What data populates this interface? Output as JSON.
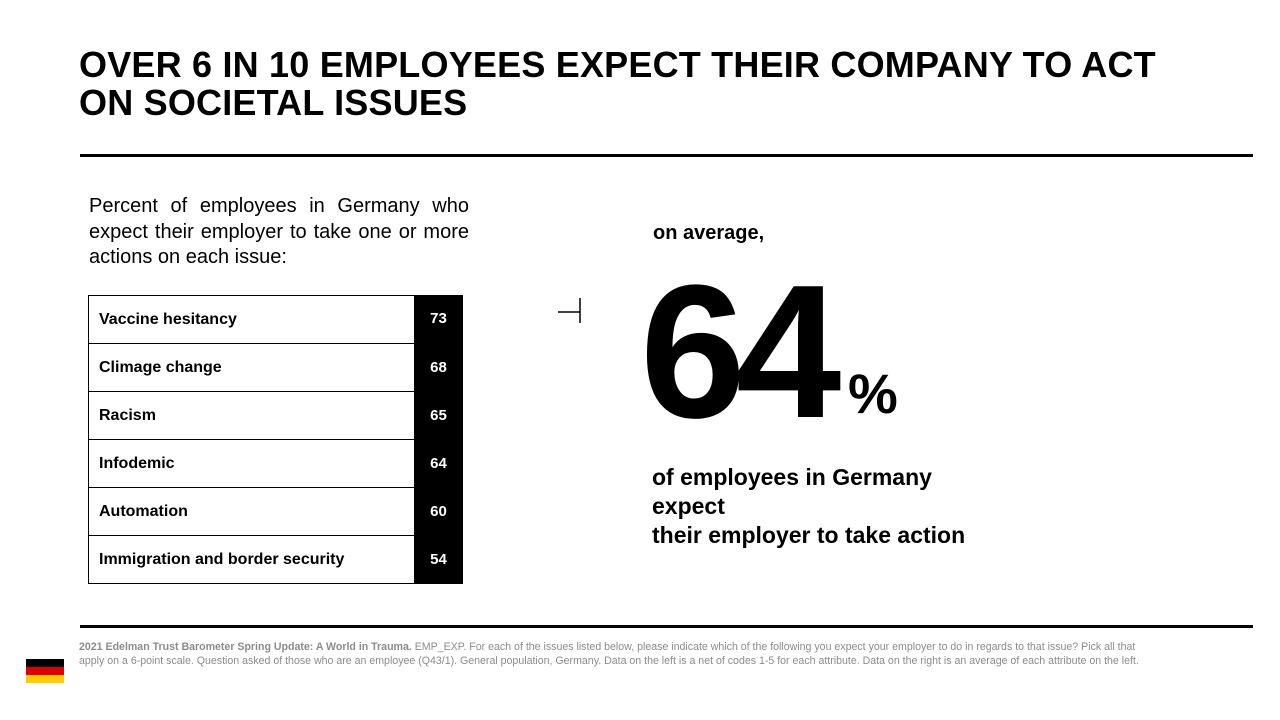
{
  "title": "OVER 6 IN 10 EMPLOYEES EXPECT THEIR COMPANY TO ACT ON SOCIETAL ISSUES",
  "intro_text": "Percent of employees in Germany who expect their employer to take one or more actions on each issue:",
  "chart_data": {
    "type": "table",
    "categories": [
      "Vaccine hesitancy",
      "Climage change",
      "Racism",
      "Infodemic",
      "Automation",
      "Immigration and border security"
    ],
    "values": [
      73,
      68,
      65,
      64,
      60,
      54
    ],
    "unit": "percent"
  },
  "average": {
    "label": "on average,",
    "value": "64",
    "unit": "%",
    "description": "of employees in Germany\nexpect\ntheir employer to take action"
  },
  "footnote": {
    "source": "2021 Edelman Trust Barometer Spring Update: A World in Trauma.",
    "text": " EMP_EXP. For each of the issues listed below, please indicate which of the following you expect your employer to do in regards to that issue? Pick all that apply on a 6-point scale. Question asked of those who are an employee (Q43/1). General population, Germany. Data on the left is a net of codes 1-5 for each attribute. Data on the right is an average of each attribute on the left."
  },
  "flag": {
    "name": "germany-flag",
    "colors": [
      "#000000",
      "#dd0000",
      "#ffcc00"
    ]
  }
}
